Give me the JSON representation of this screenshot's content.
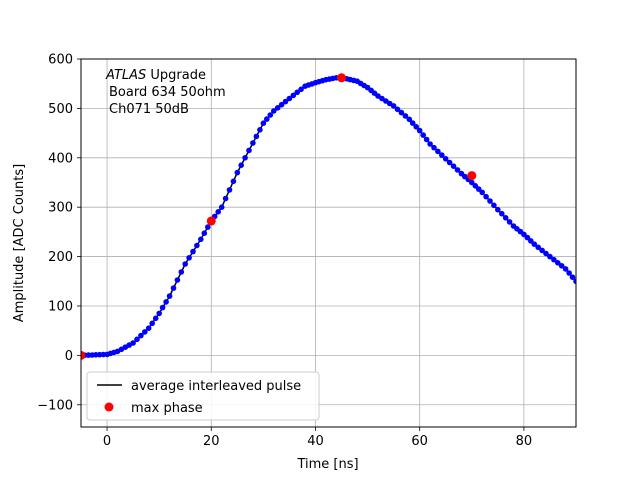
{
  "chart_data": {
    "type": "scatter",
    "xlabel": "Time [ns]",
    "ylabel": "Amplitude [ADC Counts]",
    "xlim": [
      -5,
      90
    ],
    "ylim": [
      -145,
      600
    ],
    "x_ticks": [
      0,
      20,
      40,
      60,
      80
    ],
    "y_ticks": [
      -100,
      0,
      100,
      200,
      300,
      400,
      500,
      600
    ],
    "grid": true,
    "legend_position": "lower-left",
    "annotation": {
      "italic": "ATLAS",
      "rest": " Upgrade",
      "line2": "Board 634 50ohm",
      "line3": "Ch071 50dB"
    },
    "series": [
      {
        "name": "average interleaved pulse",
        "kind": "line+markers",
        "color": "#000000",
        "marker_color": "#0000ff",
        "x": [
          -5,
          0,
          2,
          5,
          8,
          10,
          12,
          15,
          18,
          20,
          22,
          25,
          28,
          30,
          32,
          35,
          38,
          40,
          42,
          44,
          45,
          46,
          48,
          50,
          52,
          55,
          58,
          60,
          62,
          65,
          68,
          70,
          72,
          75,
          78,
          80,
          82,
          85,
          88,
          90
        ],
        "y": [
          0,
          2,
          8,
          25,
          55,
          85,
          120,
          185,
          235,
          272,
          300,
          370,
          430,
          470,
          495,
          520,
          545,
          552,
          558,
          562,
          562,
          560,
          555,
          542,
          525,
          505,
          478,
          455,
          428,
          398,
          368,
          350,
          330,
          295,
          262,
          245,
          225,
          200,
          175,
          150
        ]
      },
      {
        "name": "max phase",
        "kind": "markers",
        "color": "#ff0000",
        "x": [
          -5,
          20,
          45,
          70
        ],
        "y": [
          0,
          272,
          562,
          364
        ]
      }
    ]
  }
}
